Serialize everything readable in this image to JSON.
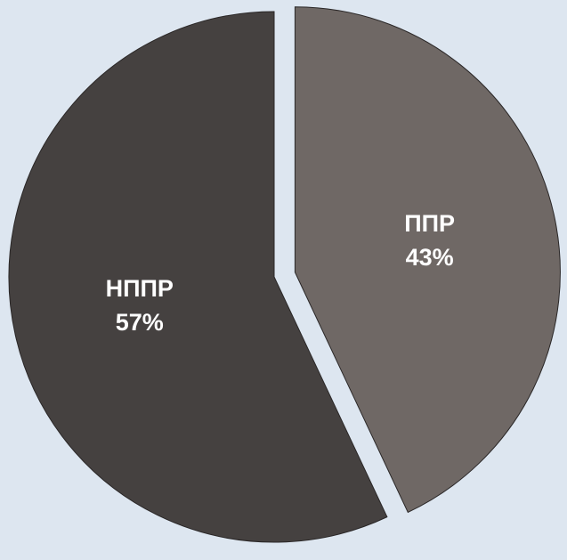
{
  "chart_data": {
    "type": "pie",
    "categories": [
      "ППР",
      "НППР"
    ],
    "values": [
      43,
      57
    ],
    "value_labels": [
      "43%",
      "57%"
    ],
    "colors": [
      "#6f6865",
      "#454140"
    ],
    "exploded": [
      true,
      false
    ]
  }
}
